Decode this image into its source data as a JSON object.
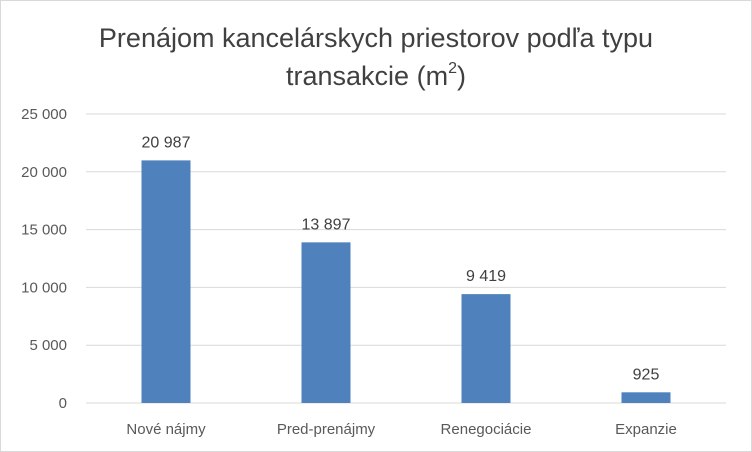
{
  "chart_data": {
    "type": "bar",
    "title": "Prenájom kancelárskych priestorov podľa typu transakcie (m",
    "title_sup": "2",
    "title_end": ")",
    "categories": [
      "Nové nájmy",
      "Pred-prenájmy",
      "Renegociácie",
      "Expanzie"
    ],
    "values": [
      20987,
      13897,
      9419,
      925
    ],
    "data_labels": [
      "20 987",
      "13 897",
      "9 419",
      "925"
    ],
    "y_ticks": [
      0,
      5000,
      10000,
      15000,
      20000,
      25000
    ],
    "y_tick_labels": [
      "0",
      "5 000",
      "10 000",
      "15 000",
      "20 000",
      "25 000"
    ],
    "ylim": [
      0,
      25000
    ],
    "grid": true,
    "legend": "none",
    "bar_color": "#4f81bd",
    "grid_color": "#d9d9d9"
  }
}
